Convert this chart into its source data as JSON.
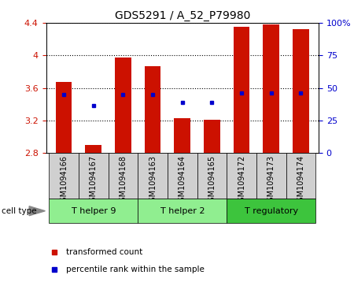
{
  "title": "GDS5291 / A_52_P79980",
  "samples": [
    "GSM1094166",
    "GSM1094167",
    "GSM1094168",
    "GSM1094163",
    "GSM1094164",
    "GSM1094165",
    "GSM1094172",
    "GSM1094173",
    "GSM1094174"
  ],
  "red_values": [
    3.67,
    2.9,
    3.97,
    3.87,
    3.23,
    3.21,
    4.35,
    4.38,
    4.32
  ],
  "blue_values": [
    3.52,
    3.38,
    3.52,
    3.52,
    3.42,
    3.42,
    3.54,
    3.54,
    3.54
  ],
  "bar_bottom": 2.8,
  "ylim": [
    2.8,
    4.4
  ],
  "yticks": [
    2.8,
    3.2,
    3.6,
    4.0,
    4.4
  ],
  "ytick_labels": [
    "2.8",
    "3.2",
    "3.6",
    "4",
    "4.4"
  ],
  "y2lim": [
    0,
    100
  ],
  "y2ticks": [
    0,
    25,
    50,
    75,
    100
  ],
  "y2ticklabels": [
    "0",
    "25",
    "50",
    "75",
    "100%"
  ],
  "groups": [
    {
      "label": "T helper 9",
      "start": 0,
      "end": 2,
      "color": "#90ee90"
    },
    {
      "label": "T helper 2",
      "start": 3,
      "end": 5,
      "color": "#90ee90"
    },
    {
      "label": "T regulatory",
      "start": 6,
      "end": 8,
      "color": "#3dc43d"
    }
  ],
  "bar_color": "#cc1100",
  "dot_color": "#0000cc",
  "bar_width": 0.55,
  "title_fontsize": 10,
  "tick_fontsize": 8,
  "label_fontsize": 7,
  "group_fontsize": 8,
  "legend_fontsize": 7.5
}
